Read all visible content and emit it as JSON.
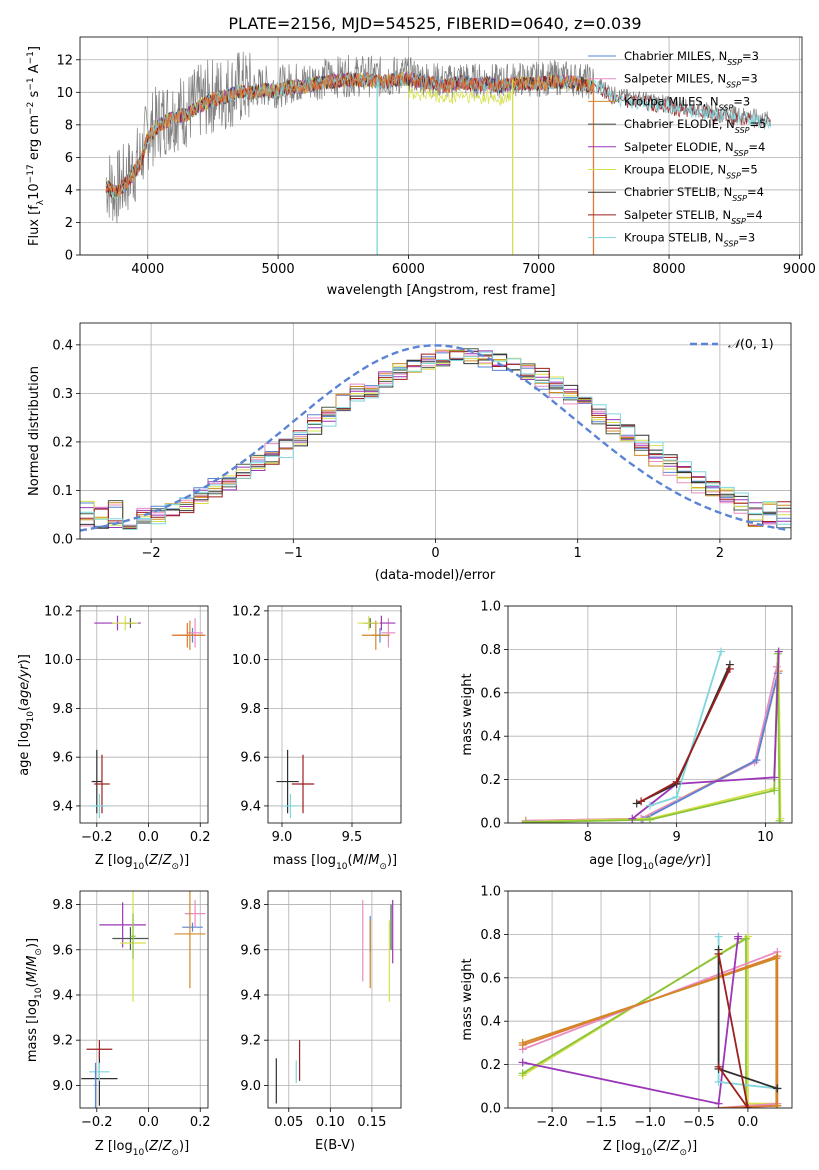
{
  "figure_title": "PLATE=2156, MJD=54525, FIBERID=0640, z=0.039",
  "colors": {
    "Chabrier MILES": "#5b84d4",
    "Salpeter MILES": "#e88cc2",
    "Kroupa MILES": "#d08a24",
    "Chabrier ELODIE": "#4a5d4a",
    "Salpeter ELODIE": "#9b36b8",
    "Kroupa ELODIE": "#d6e04a",
    "Chabrier STELIB": "#303030",
    "Salpeter STELIB": "#9e1f1f",
    "Kroupa STELIB": "#7fd6dc",
    "data": "#808080",
    "orange": "#e07838",
    "green": "#8ac43a",
    "normal": "#5b84d4"
  },
  "chart_data": [
    {
      "id": "spectrum",
      "type": "line",
      "xlabel": "wavelength [Angstrom, rest frame]",
      "ylabel": "Flux [f",
      "xlim": [
        3480,
        9020
      ],
      "ylim": [
        0,
        13.4
      ],
      "xticks": [
        4000,
        5000,
        6000,
        7000,
        8000,
        9000
      ],
      "yticks": [
        0,
        2,
        4,
        6,
        8,
        10,
        12
      ],
      "legend": [
        {
          "name": "Chabrier MILES",
          "nssp": "3"
        },
        {
          "name": "Salpeter MILES",
          "nssp": "3"
        },
        {
          "name": "Kroupa MILES",
          "nssp": "3"
        },
        {
          "name": "Chabrier ELODIE",
          "nssp": "5"
        },
        {
          "name": "Salpeter ELODIE",
          "nssp": "4"
        },
        {
          "name": "Kroupa ELODIE",
          "nssp": "5"
        },
        {
          "name": "Chabrier STELIB",
          "nssp": "4"
        },
        {
          "name": "Salpeter STELIB",
          "nssp": "4"
        },
        {
          "name": "Kroupa STELIB",
          "nssp": "3"
        }
      ],
      "legend_position": "right",
      "continuum": [
        [
          3680,
          4.5
        ],
        [
          3750,
          4.0
        ],
        [
          3850,
          4.8
        ],
        [
          3950,
          6.0
        ],
        [
          4000,
          7.5
        ],
        [
          4100,
          8.3
        ],
        [
          4200,
          8.7
        ],
        [
          4300,
          8.9
        ],
        [
          4400,
          9.4
        ],
        [
          4500,
          9.8
        ],
        [
          4600,
          10.0
        ],
        [
          4700,
          10.3
        ],
        [
          4800,
          10.2
        ],
        [
          4900,
          10.4
        ],
        [
          5000,
          10.3
        ],
        [
          5100,
          10.6
        ],
        [
          5200,
          10.6
        ],
        [
          5300,
          10.8
        ],
        [
          5400,
          10.9
        ],
        [
          5500,
          11.0
        ],
        [
          5600,
          11.0
        ],
        [
          5700,
          11.0
        ],
        [
          5800,
          10.9
        ],
        [
          5900,
          11.0
        ],
        [
          6000,
          11.1
        ],
        [
          6100,
          10.9
        ],
        [
          6200,
          10.8
        ],
        [
          6300,
          10.6
        ],
        [
          6400,
          10.9
        ],
        [
          6500,
          10.7
        ],
        [
          6600,
          10.8
        ],
        [
          6700,
          10.6
        ],
        [
          6800,
          10.8
        ],
        [
          6900,
          10.8
        ],
        [
          7000,
          10.8
        ],
        [
          7100,
          10.9
        ],
        [
          7200,
          10.9
        ],
        [
          7300,
          10.8
        ],
        [
          7420,
          10.6
        ],
        [
          7500,
          10.3
        ],
        [
          7600,
          9.8
        ],
        [
          7800,
          9.6
        ],
        [
          8000,
          9.3
        ],
        [
          8200,
          9.0
        ],
        [
          8400,
          8.8
        ],
        [
          8600,
          8.6
        ],
        [
          8780,
          8.3
        ]
      ],
      "sky_line_wavelengths": [
        5760,
        6800,
        7420
      ]
    },
    {
      "id": "residuals",
      "type": "histogram",
      "xlabel": "(data-model)/error",
      "ylabel": "Normed distribution",
      "xlim": [
        -2.5,
        2.5
      ],
      "ylim": [
        0,
        0.445
      ],
      "xticks": [
        -2,
        -1,
        0,
        1,
        2
      ],
      "yticks": [
        0,
        0.1,
        0.2,
        0.3,
        0.4
      ],
      "reference_label": "(0, 1)",
      "reference_symbol": "𝒩",
      "bin_width": 0.1,
      "mean_shift": 0.2,
      "sigma": 1.08
    },
    {
      "id": "age_vs_Z",
      "type": "scatter",
      "xlabel": "Z [log",
      "ylabel": "age  [log",
      "xlim": [
        -0.265,
        0.23
      ],
      "ylim": [
        9.33,
        10.22
      ],
      "xticks": [
        -0.2,
        0.0,
        0.2
      ],
      "yticks": [
        9.4,
        9.6,
        9.8,
        10.0,
        10.2
      ],
      "points": [
        {
          "s": "Chabrier MILES",
          "x": 0.17,
          "y": 10.1,
          "xe": 0.05,
          "ye": 0.03
        },
        {
          "s": "Salpeter MILES",
          "x": 0.18,
          "y": 10.11,
          "xe": 0.03,
          "ye": 0.06
        },
        {
          "s": "Kroupa MILES",
          "x": 0.16,
          "y": 10.1,
          "xe": 0.06,
          "ye": 0.06
        },
        {
          "s": "Chabrier ELODIE",
          "x": -0.07,
          "y": 10.15,
          "xe": 0.02,
          "ye": 0.02
        },
        {
          "s": "Salpeter ELODIE",
          "x": -0.12,
          "y": 10.15,
          "xe": 0.09,
          "ye": 0.03
        },
        {
          "s": "Kroupa ELODIE",
          "x": -0.09,
          "y": 10.15,
          "xe": 0.05,
          "ye": 0.03
        },
        {
          "s": "Chabrier STELIB",
          "x": -0.2,
          "y": 9.5,
          "xe": 0.02,
          "ye": 0.13
        },
        {
          "s": "Salpeter STELIB",
          "x": -0.18,
          "y": 9.49,
          "xe": 0.03,
          "ye": 0.12
        },
        {
          "s": "Kroupa STELIB",
          "x": -0.19,
          "y": 9.4,
          "xe": 0.03,
          "ye": 0.05
        },
        {
          "s": "orange",
          "x": 0.15,
          "y": 10.1,
          "xe": 0.06,
          "ye": 0.05
        }
      ]
    },
    {
      "id": "age_vs_mass",
      "type": "scatter",
      "xlabel": "mass [log",
      "ylabel": "",
      "xlim": [
        8.9,
        9.85
      ],
      "ylim": [
        9.33,
        10.22
      ],
      "xticks": [
        9.0,
        9.5
      ],
      "yticks": [
        9.4,
        9.6,
        9.8,
        10.0,
        10.2
      ],
      "points": [
        {
          "s": "Chabrier MILES",
          "x": 9.7,
          "y": 10.1,
          "xe": 0.06,
          "ye": 0.03
        },
        {
          "s": "Salpeter MILES",
          "x": 9.76,
          "y": 10.11,
          "xe": 0.05,
          "ye": 0.06
        },
        {
          "s": "Kroupa MILES",
          "x": 9.67,
          "y": 10.1,
          "xe": 0.1,
          "ye": 0.06
        },
        {
          "s": "Chabrier ELODIE",
          "x": 9.63,
          "y": 10.15,
          "xe": 0.05,
          "ye": 0.02
        },
        {
          "s": "Salpeter ELODIE",
          "x": 9.71,
          "y": 10.15,
          "xe": 0.1,
          "ye": 0.03
        },
        {
          "s": "Kroupa ELODIE",
          "x": 9.62,
          "y": 10.15,
          "xe": 0.08,
          "ye": 0.03
        },
        {
          "s": "Chabrier STELIB",
          "x": 9.04,
          "y": 9.5,
          "xe": 0.08,
          "ye": 0.13
        },
        {
          "s": "Salpeter STELIB",
          "x": 9.15,
          "y": 9.49,
          "xe": 0.08,
          "ye": 0.12
        },
        {
          "s": "Kroupa STELIB",
          "x": 9.06,
          "y": 9.4,
          "xe": 0.05,
          "ye": 0.05
        }
      ]
    },
    {
      "id": "mass_weight_vs_age",
      "type": "line",
      "xlabel": "age  [log",
      "ylabel": "mass weight",
      "xlim": [
        7.1,
        10.3
      ],
      "ylim": [
        0,
        1
      ],
      "xticks": [
        8,
        9,
        10
      ],
      "yticks": [
        0.0,
        0.2,
        0.4,
        0.6,
        0.8,
        1.0
      ],
      "series": [
        {
          "s": "orange",
          "x": [
            7.3,
            8.6,
            9.9,
            10.15
          ],
          "y": [
            0.01,
            0.02,
            0.29,
            0.7
          ]
        },
        {
          "s": "Salpeter MILES",
          "x": [
            7.3,
            8.6,
            9.88,
            10.13
          ],
          "y": [
            0.01,
            0.02,
            0.28,
            0.72
          ]
        },
        {
          "s": "Chabrier MILES",
          "x": [
            7.3,
            8.62,
            9.9,
            10.14
          ],
          "y": [
            0.005,
            0.015,
            0.29,
            0.69
          ]
        },
        {
          "s": "Kroupa ELODIE",
          "x": [
            7.3,
            8.7,
            10.1,
            10.15,
            10.17
          ],
          "y": [
            0.005,
            0.02,
            0.16,
            0.79,
            0.02
          ]
        },
        {
          "s": "green",
          "x": [
            7.3,
            8.7,
            10.1,
            10.14,
            10.16
          ],
          "y": [
            0.003,
            0.015,
            0.15,
            0.78,
            0.01
          ]
        },
        {
          "s": "Salpeter ELODIE",
          "x": [
            8.5,
            9.0,
            10.1,
            10.15
          ],
          "y": [
            0.02,
            0.18,
            0.21,
            0.79
          ]
        },
        {
          "s": "Kroupa STELIB",
          "x": [
            8.7,
            9.0,
            9.5
          ],
          "y": [
            0.08,
            0.12,
            0.79
          ]
        },
        {
          "s": "Chabrier STELIB",
          "x": [
            8.55,
            9.0,
            9.6
          ],
          "y": [
            0.09,
            0.18,
            0.73
          ]
        },
        {
          "s": "Salpeter STELIB",
          "x": [
            8.6,
            9.0,
            9.6
          ],
          "y": [
            0.1,
            0.19,
            0.71
          ]
        }
      ]
    },
    {
      "id": "mass_vs_Z",
      "type": "scatter",
      "xlabel": "Z [log",
      "ylabel": "mass [log",
      "xlim": [
        -0.265,
        0.23
      ],
      "ylim": [
        8.9,
        9.86
      ],
      "xticks": [
        -0.2,
        0.0,
        0.2
      ],
      "yticks": [
        9.0,
        9.2,
        9.4,
        9.6,
        9.8
      ],
      "points": [
        {
          "s": "Chabrier MILES",
          "x": 0.17,
          "y": 9.7,
          "xe": 0.04,
          "ye": 0.02
        },
        {
          "s": "Salpeter MILES",
          "x": 0.18,
          "y": 9.76,
          "xe": 0.04,
          "ye": 0.06
        },
        {
          "s": "Kroupa MILES",
          "x": 0.16,
          "y": 9.67,
          "xe": 0.06,
          "ye": 0.24
        },
        {
          "s": "Chabrier ELODIE",
          "x": -0.07,
          "y": 9.65,
          "xe": 0.07,
          "ye": 0.05
        },
        {
          "s": "Salpeter ELODIE",
          "x": -0.1,
          "y": 9.71,
          "xe": 0.09,
          "ye": 0.1
        },
        {
          "s": "Kroupa ELODIE",
          "x": -0.06,
          "y": 9.63,
          "xe": 0.05,
          "ye": 0.26
        },
        {
          "s": "green",
          "x": -0.06,
          "y": 9.66,
          "xe": 0.01,
          "ye": 0.1
        },
        {
          "s": "Chabrier STELIB",
          "x": -0.19,
          "y": 9.03,
          "xe": 0.07,
          "ye": 0.12
        },
        {
          "s": "Salpeter STELIB",
          "x": -0.19,
          "y": 9.16,
          "xe": 0.05,
          "ye": 0.04
        },
        {
          "s": "Kroupa STELIB",
          "x": -0.19,
          "y": 9.06,
          "xe": 0.04,
          "ye": 0.04
        },
        {
          "s": "Chabrier MILES",
          "x": -0.205,
          "y": 9.0,
          "xe": 0.005,
          "ye": 0.1
        }
      ]
    },
    {
      "id": "mass_vs_EBV",
      "type": "scatter",
      "xlabel": "E(B-V)",
      "ylabel": "",
      "xlim": [
        0.025,
        0.185
      ],
      "ylim": [
        8.9,
        9.86
      ],
      "xticks": [
        0.05,
        0.1,
        0.15
      ],
      "yticks": [
        9.0,
        9.2,
        9.4,
        9.6,
        9.8
      ],
      "points": [
        {
          "s": "Salpeter MILES",
          "x": 0.139,
          "y": 9.64,
          "xe": 0,
          "ye": 0.18
        },
        {
          "s": "Chabrier MILES",
          "x": 0.148,
          "y": 9.67,
          "xe": 0,
          "ye": 0.08
        },
        {
          "s": "Kroupa MILES",
          "x": 0.148,
          "y": 9.58,
          "xe": 0,
          "ye": 0.15
        },
        {
          "s": "Kroupa ELODIE",
          "x": 0.171,
          "y": 9.55,
          "xe": 0,
          "ye": 0.18
        },
        {
          "s": "Salpeter ELODIE",
          "x": 0.175,
          "y": 9.68,
          "xe": 0,
          "ye": 0.14
        },
        {
          "s": "Chabrier ELODIE",
          "x": 0.173,
          "y": 9.7,
          "xe": 0,
          "ye": 0.1
        },
        {
          "s": "Chabrier STELIB",
          "x": 0.035,
          "y": 9.02,
          "xe": 0,
          "ye": 0.1
        },
        {
          "s": "Salpeter STELIB",
          "x": 0.063,
          "y": 9.11,
          "xe": 0,
          "ye": 0.09
        },
        {
          "s": "Kroupa STELIB",
          "x": 0.059,
          "y": 9.06,
          "xe": 0,
          "ye": 0.05
        }
      ]
    },
    {
      "id": "mass_weight_vs_Z",
      "type": "line",
      "xlabel": "Z [log",
      "ylabel": "mass weight",
      "xlim": [
        -2.45,
        0.45
      ],
      "ylim": [
        0,
        1
      ],
      "xticks": [
        -2.0,
        -1.5,
        -1.0,
        -0.5,
        0.0
      ],
      "yticks": [
        0.0,
        0.2,
        0.4,
        0.6,
        0.8,
        1.0
      ],
      "series": [
        {
          "s": "Kroupa ELODIE",
          "x": [
            -2.3,
            0.0,
            0.0,
            0.3
          ],
          "y": [
            0.15,
            0.79,
            0.02,
            0.02
          ]
        },
        {
          "s": "green",
          "x": [
            -2.3,
            -0.02,
            -0.02,
            0.3
          ],
          "y": [
            0.16,
            0.78,
            0.01,
            0.01
          ]
        },
        {
          "s": "Salpeter MILES",
          "x": [
            -2.3,
            0.3,
            0.3,
            -0.3
          ],
          "y": [
            0.27,
            0.72,
            0.02,
            0.0
          ]
        },
        {
          "s": "orange",
          "x": [
            -2.3,
            0.3,
            0.3,
            -0.3
          ],
          "y": [
            0.29,
            0.7,
            0.01,
            0.0
          ]
        },
        {
          "s": "Kroupa MILES",
          "x": [
            -2.3,
            0.29,
            0.29
          ],
          "y": [
            0.3,
            0.69,
            0.01
          ]
        },
        {
          "s": "Salpeter ELODIE",
          "x": [
            -2.3,
            -0.3,
            -0.1,
            -0.1
          ],
          "y": [
            0.21,
            0.02,
            0.79,
            0.78
          ]
        },
        {
          "s": "Kroupa STELIB",
          "x": [
            -0.3,
            -0.3,
            0.3
          ],
          "y": [
            0.79,
            0.12,
            0.09
          ]
        },
        {
          "s": "Chabrier STELIB",
          "x": [
            -0.3,
            -0.3,
            0.3,
            0.3
          ],
          "y": [
            0.73,
            0.18,
            0.09,
            0.09
          ]
        },
        {
          "s": "Salpeter STELIB",
          "x": [
            -0.3,
            0.0,
            0.0,
            -0.3
          ],
          "y": [
            0.71,
            0.0,
            0.0,
            0.19
          ]
        }
      ]
    }
  ]
}
